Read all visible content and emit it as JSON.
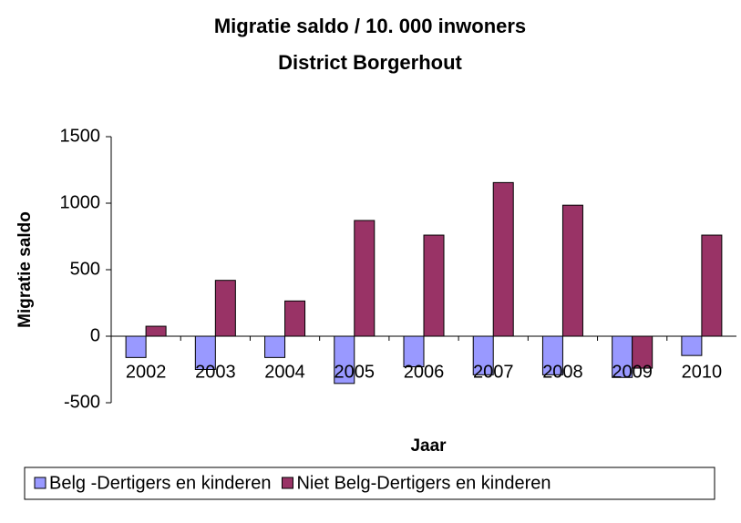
{
  "chart_data": {
    "type": "bar",
    "title": "Migratie saldo / 10. 000 inwoners",
    "subtitle": "District Borgerhout",
    "x_label": "Jaar",
    "y_label": "Migratie saldo",
    "categories": [
      "2002",
      "2003",
      "2004",
      "2005",
      "2006",
      "2007",
      "2008",
      "2009",
      "2010"
    ],
    "series": [
      {
        "name": "Belg -Dertigers en kinderen",
        "color": "#9999ff",
        "values": [
          -160,
          -250,
          -160,
          -355,
          -230,
          -290,
          -290,
          -310,
          -145
        ]
      },
      {
        "name": "Niet Belg-Dertigers en kinderen",
        "color": "#993366",
        "values": [
          75,
          420,
          265,
          870,
          760,
          1155,
          985,
          -240,
          760
        ]
      }
    ],
    "ylim": [
      -500,
      1500
    ],
    "yticks": [
      -500,
      0,
      500,
      1000,
      1500
    ],
    "grid": false,
    "legend": "bottom"
  }
}
